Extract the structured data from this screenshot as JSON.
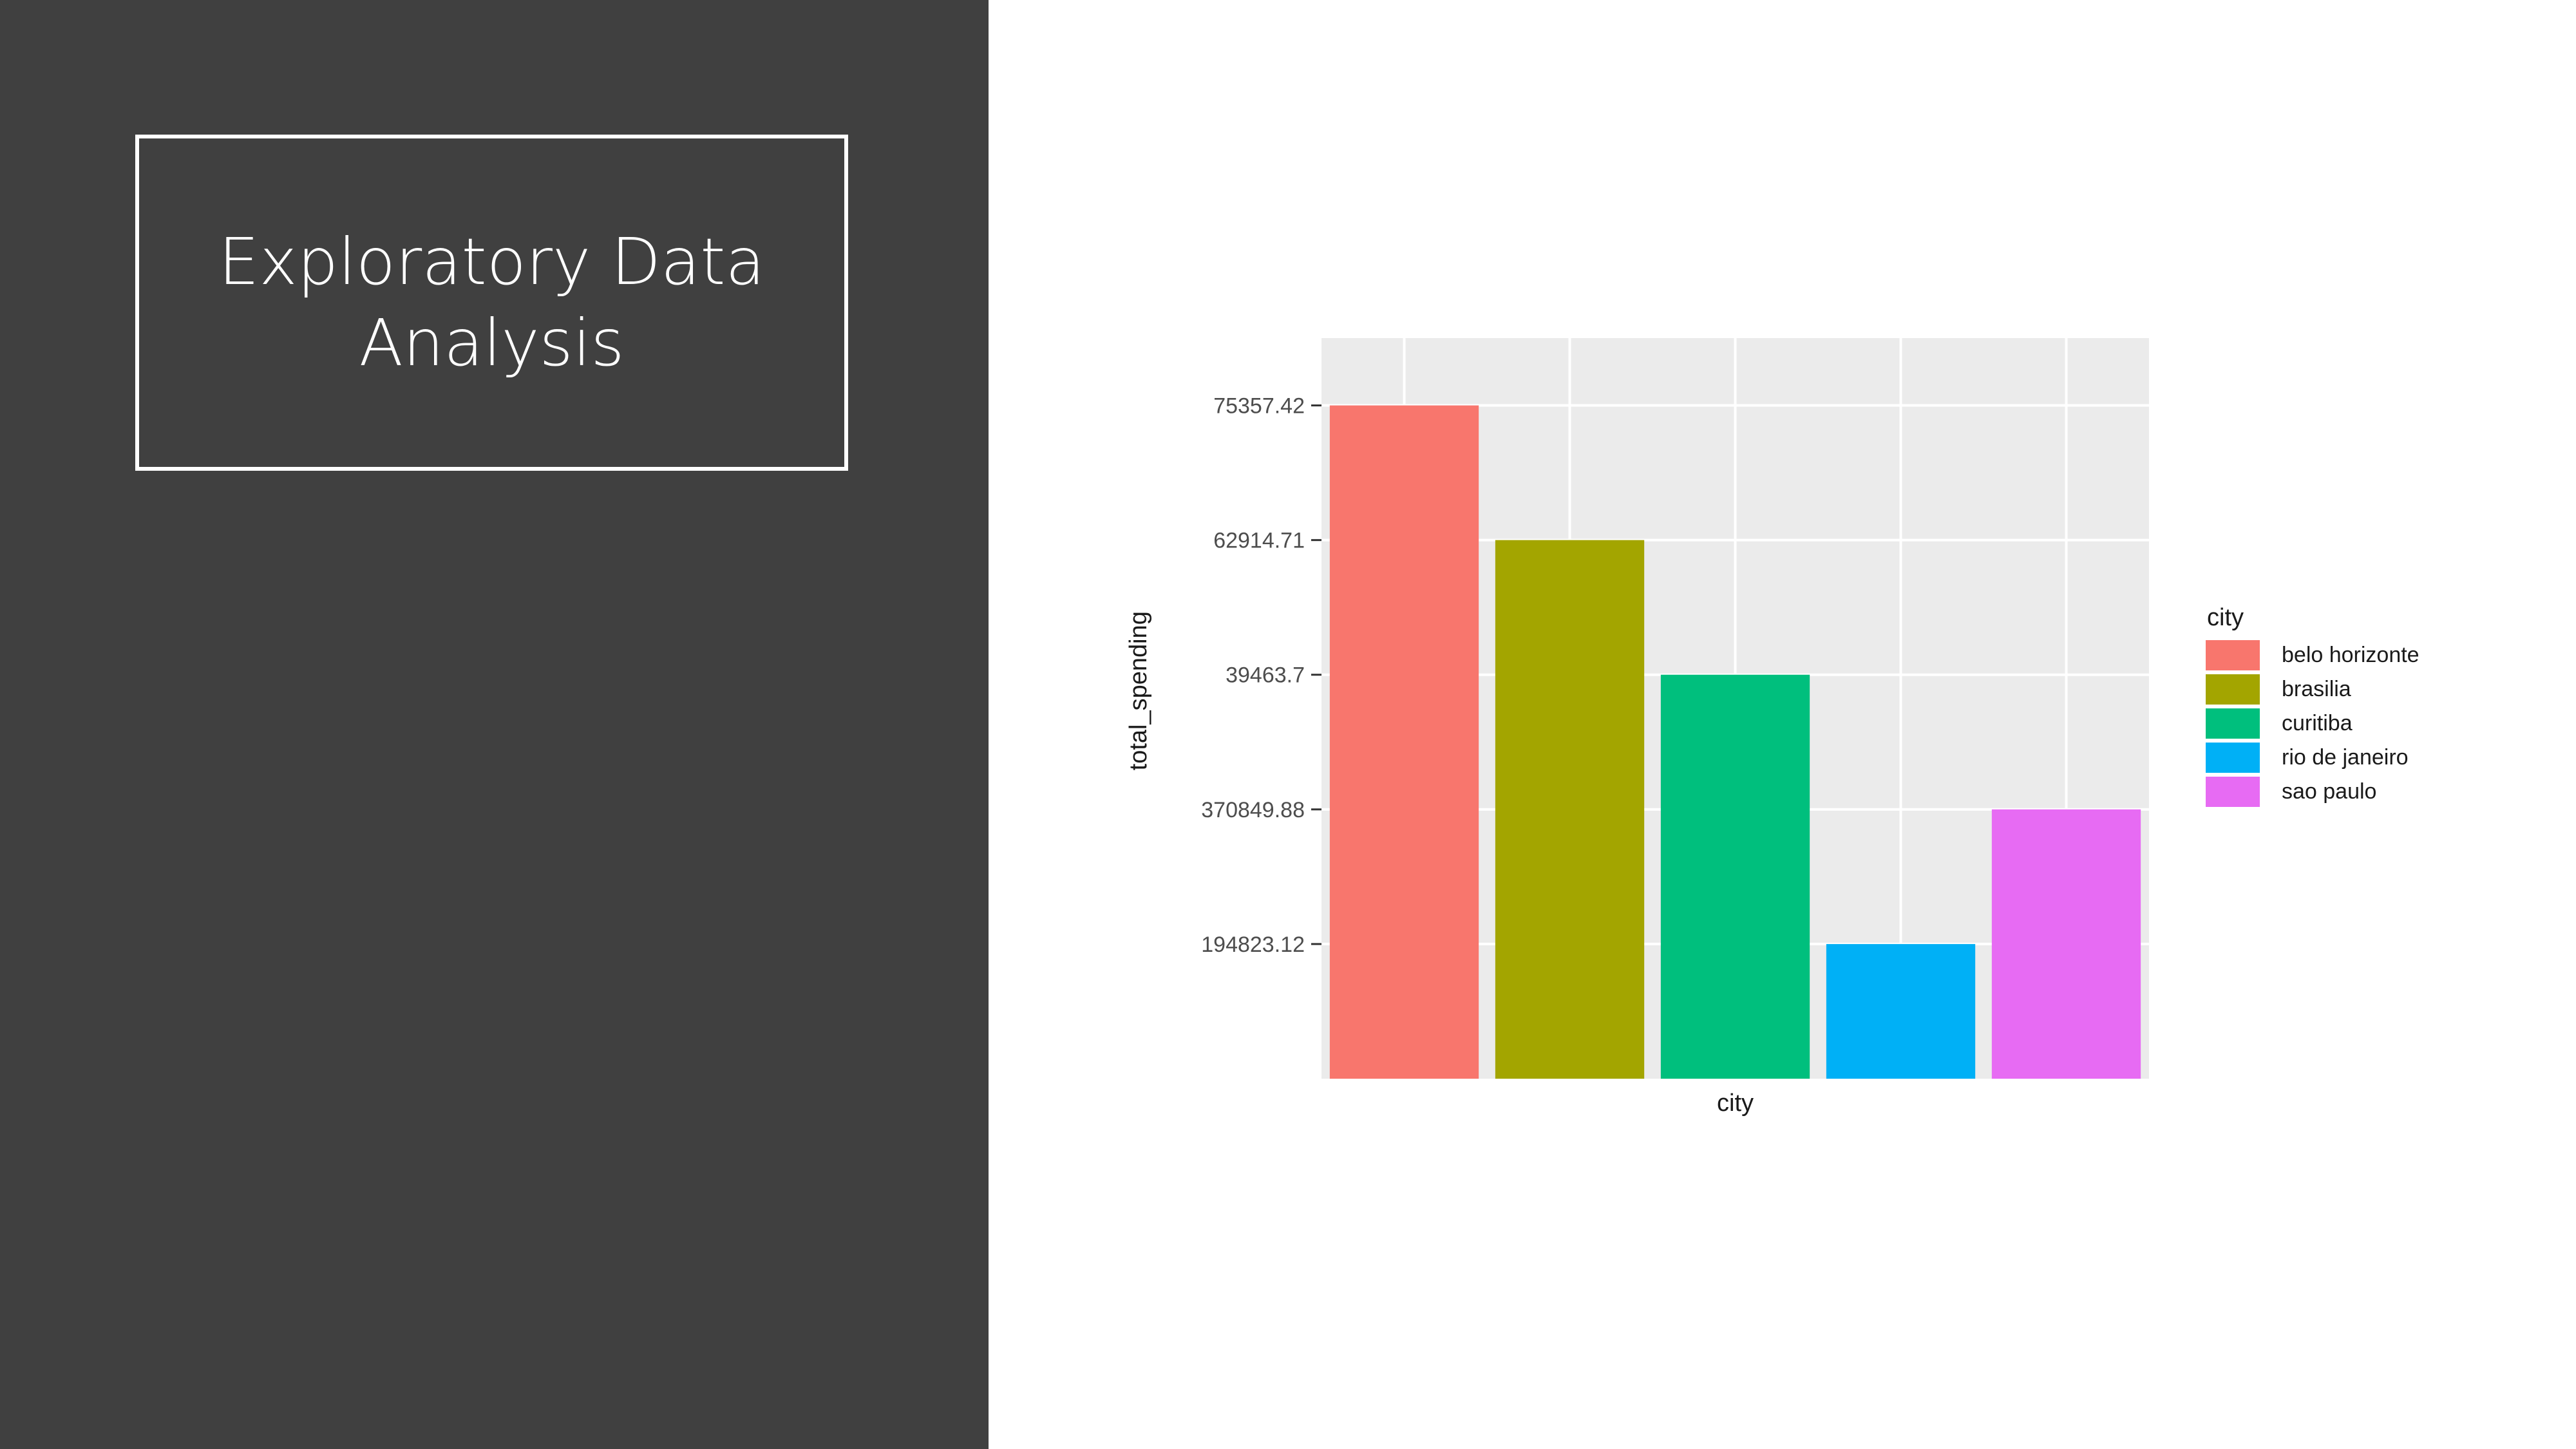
{
  "slide": {
    "title": "Exploratory Data Analysis"
  },
  "colors": {
    "left_panel": "#404040",
    "panel_bg": "#EBEBEB",
    "grid": "#FFFFFF"
  },
  "chart_data": {
    "type": "bar",
    "categories": [
      "belo horizonte",
      "brasilia",
      "curitiba",
      "rio de janeiro",
      "sao paulo"
    ],
    "values": [
      75357.42,
      62914.71,
      39463.7,
      194823.12,
      370849.88
    ],
    "colors": [
      "#F8766D",
      "#A3A500",
      "#00BF7D",
      "#00B0F6",
      "#E76BF3"
    ],
    "y_tick_labels": [
      "194823.12",
      "370849.88",
      "39463.7",
      "62914.71",
      "75357.42"
    ],
    "bar_tick_index": [
      5,
      4,
      3,
      1,
      2
    ],
    "title": "",
    "xlabel": "city",
    "ylabel": "total_spending",
    "legend_title": "city",
    "legend_position": "right",
    "grid": true
  }
}
